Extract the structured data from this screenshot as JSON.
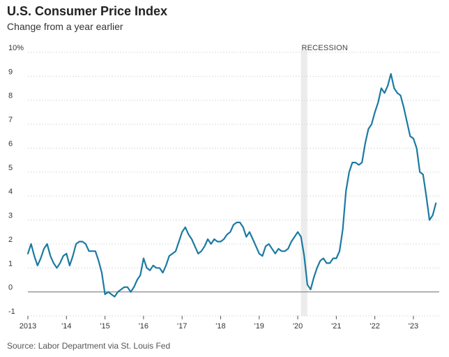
{
  "header": {
    "title": "U.S. Consumer Price Index",
    "subtitle": "Change from a year earlier"
  },
  "footer": {
    "source": "Source: Labor Department via St. Louis Fed"
  },
  "colors": {
    "line": "#1a7aa2",
    "grid": "#dddddd",
    "zero": "#888888",
    "recession": "#ececec"
  },
  "chart_data": {
    "type": "line",
    "title": "U.S. Consumer Price Index",
    "subtitle": "Change from a year earlier",
    "ylabel": "",
    "xlabel": "",
    "ylim": [
      -1,
      10
    ],
    "xlim": [
      2013.0,
      2023.67
    ],
    "y_ticks": [
      {
        "value": 10,
        "label": "10%"
      },
      {
        "value": 9,
        "label": "9"
      },
      {
        "value": 8,
        "label": "8"
      },
      {
        "value": 7,
        "label": "7"
      },
      {
        "value": 6,
        "label": "6"
      },
      {
        "value": 5,
        "label": "5"
      },
      {
        "value": 4,
        "label": "4"
      },
      {
        "value": 3,
        "label": "3"
      },
      {
        "value": 2,
        "label": "2"
      },
      {
        "value": 1,
        "label": "1"
      },
      {
        "value": 0,
        "label": "0"
      },
      {
        "value": -1,
        "label": "-1"
      }
    ],
    "x_ticks": [
      {
        "value": 2013,
        "label": "2013"
      },
      {
        "value": 2014,
        "label": "'14"
      },
      {
        "value": 2015,
        "label": "'15"
      },
      {
        "value": 2016,
        "label": "'16"
      },
      {
        "value": 2017,
        "label": "'17"
      },
      {
        "value": 2018,
        "label": "'18"
      },
      {
        "value": 2019,
        "label": "'19"
      },
      {
        "value": 2020,
        "label": "'20"
      },
      {
        "value": 2021,
        "label": "'21"
      },
      {
        "value": 2022,
        "label": "'22"
      },
      {
        "value": 2023,
        "label": "'23"
      }
    ],
    "recession": {
      "label": "RECESSION",
      "start": 2020.08,
      "end": 2020.25
    },
    "grid": true,
    "legend": "none",
    "series": [
      {
        "name": "CPI, change from a year earlier",
        "start_year": 2013,
        "start_month": 1,
        "values": [
          1.6,
          2.0,
          1.5,
          1.1,
          1.4,
          1.8,
          2.0,
          1.5,
          1.2,
          1.0,
          1.2,
          1.5,
          1.6,
          1.1,
          1.5,
          2.0,
          2.1,
          2.1,
          2.0,
          1.7,
          1.7,
          1.7,
          1.3,
          0.8,
          -0.1,
          0.0,
          -0.1,
          -0.2,
          0.0,
          0.1,
          0.2,
          0.2,
          0.0,
          0.2,
          0.5,
          0.7,
          1.4,
          1.0,
          0.9,
          1.1,
          1.0,
          1.0,
          0.8,
          1.1,
          1.5,
          1.6,
          1.7,
          2.1,
          2.5,
          2.7,
          2.4,
          2.2,
          1.9,
          1.6,
          1.7,
          1.9,
          2.2,
          2.0,
          2.2,
          2.1,
          2.1,
          2.2,
          2.4,
          2.5,
          2.8,
          2.9,
          2.9,
          2.7,
          2.3,
          2.5,
          2.2,
          1.9,
          1.6,
          1.5,
          1.9,
          2.0,
          1.8,
          1.6,
          1.8,
          1.7,
          1.7,
          1.8,
          2.1,
          2.3,
          2.5,
          2.3,
          1.5,
          0.3,
          0.1,
          0.6,
          1.0,
          1.3,
          1.4,
          1.2,
          1.2,
          1.4,
          1.4,
          1.7,
          2.6,
          4.2,
          5.0,
          5.4,
          5.4,
          5.3,
          5.4,
          6.2,
          6.8,
          7.0,
          7.5,
          7.9,
          8.5,
          8.3,
          8.6,
          9.1,
          8.5,
          8.3,
          8.2,
          7.7,
          7.1,
          6.5,
          6.4,
          6.0,
          5.0,
          4.9,
          4.0,
          3.0,
          3.2,
          3.7
        ]
      }
    ]
  }
}
